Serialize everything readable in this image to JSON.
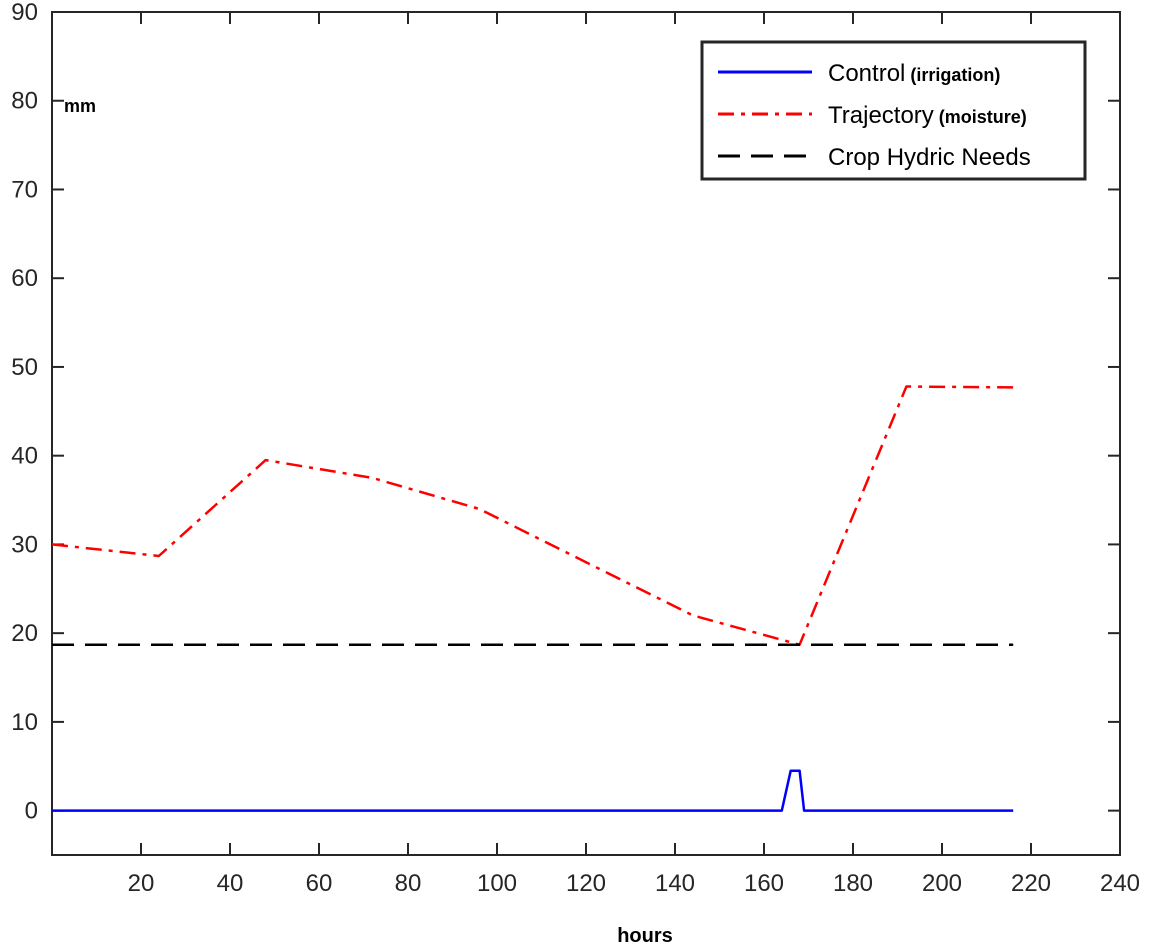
{
  "chart_data": {
    "type": "line",
    "title": "",
    "xlabel": "hours",
    "ylabel": "mm",
    "xlim": [
      0,
      240
    ],
    "ylim": [
      -5,
      90
    ],
    "xticks": [
      20,
      40,
      60,
      80,
      100,
      120,
      140,
      160,
      180,
      200,
      220,
      240
    ],
    "yticks": [
      0,
      10,
      20,
      30,
      40,
      50,
      60,
      70,
      80,
      90
    ],
    "grid": false,
    "legend_position": "top-right",
    "series": [
      {
        "name": "Control",
        "name_suffix": "(irrigation)",
        "color": "#0000ff",
        "style": "solid",
        "x": [
          0,
          148,
          164,
          166,
          168,
          169,
          197,
          216
        ],
        "y": [
          0,
          0,
          0,
          4.5,
          4.5,
          0,
          0,
          0
        ]
      },
      {
        "name": "Trajectory",
        "name_suffix": "(moisture)",
        "color": "#ff0000",
        "style": "dashdot",
        "x": [
          0,
          24,
          48,
          72,
          96,
          120,
          144,
          168,
          192,
          216
        ],
        "y": [
          30,
          28.7,
          39.5,
          37.5,
          34,
          28,
          22,
          18.7,
          47.8,
          47.7
        ]
      },
      {
        "name": "Crop Hydric Needs",
        "name_suffix": "",
        "color": "#000000",
        "style": "dashed",
        "x": [
          0,
          216
        ],
        "y": [
          18.7,
          18.7
        ]
      }
    ]
  }
}
